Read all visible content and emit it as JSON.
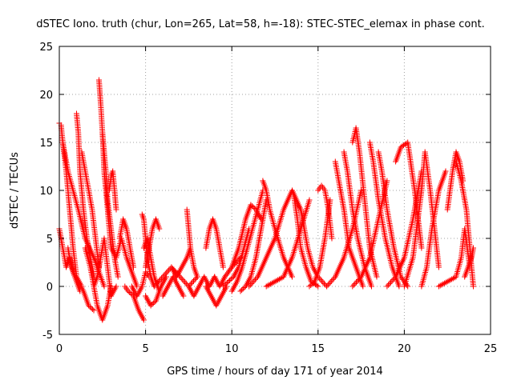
{
  "chart_data": {
    "type": "scatter",
    "title": "dSTEC Iono. truth (chur, Lon=265, Lat=58, h=-18): STEC-STEC_elemax in phase cont.",
    "xlabel": "GPS time / hours of day 171 of year 2014",
    "ylabel": "dSTEC  / TECUs",
    "xlim": [
      0,
      25
    ],
    "ylim": [
      -5,
      25
    ],
    "xticks": [
      0,
      5,
      10,
      15,
      20,
      25
    ],
    "yticks": [
      -5,
      0,
      5,
      10,
      15,
      20,
      25
    ],
    "xtick_labels": [
      "0",
      "5",
      "10",
      "15",
      "20",
      "25"
    ],
    "ytick_labels": [
      "-5",
      "0",
      "5",
      "10",
      "15",
      "20",
      "25"
    ],
    "grid": true,
    "marker": "plus",
    "color": "#ff0000",
    "arcs": [
      {
        "x": [
          0.0,
          0.1,
          0.2,
          0.4,
          0.6,
          0.8,
          1.0,
          1.3
        ],
        "y": [
          17.0,
          16.8,
          15.0,
          12.0,
          8.0,
          4.0,
          1.0,
          0.0
        ]
      },
      {
        "x": [
          0.0,
          0.2,
          0.4,
          0.6,
          0.9,
          1.2
        ],
        "y": [
          6.0,
          4.0,
          2.0,
          3.0,
          1.0,
          -0.5
        ]
      },
      {
        "x": [
          0.2,
          0.5,
          0.8,
          1.1,
          1.5,
          2.0,
          2.6
        ],
        "y": [
          15.0,
          12.0,
          10.0,
          8.0,
          5.0,
          3.0,
          0.0
        ]
      },
      {
        "x": [
          0.5,
          0.7,
          0.9,
          1.1,
          1.4,
          1.7,
          2.0
        ],
        "y": [
          4.0,
          2.0,
          1.0,
          0.5,
          -0.5,
          -2.0,
          -2.5
        ]
      },
      {
        "x": [
          1.0,
          1.1,
          1.2,
          1.4,
          1.6,
          1.8,
          2.0
        ],
        "y": [
          18.0,
          16.0,
          12.0,
          8.0,
          5.0,
          3.0,
          1.0
        ]
      },
      {
        "x": [
          1.3,
          1.5,
          1.7,
          1.9,
          2.1,
          2.3
        ],
        "y": [
          14.0,
          12.0,
          10.0,
          8.0,
          5.0,
          2.0
        ]
      },
      {
        "x": [
          1.5,
          1.8,
          2.0,
          2.2,
          2.5,
          2.8,
          3.0
        ],
        "y": [
          4.0,
          2.0,
          0.0,
          -2.0,
          -3.5,
          -2.0,
          0.0
        ]
      },
      {
        "x": [
          2.0,
          2.2,
          2.4,
          2.6,
          2.8,
          3.0,
          3.3
        ],
        "y": [
          0.0,
          1.0,
          3.0,
          5.0,
          2.0,
          -1.0,
          0.0
        ]
      },
      {
        "x": [
          2.3,
          2.4,
          2.5,
          2.6,
          2.8,
          3.0
        ],
        "y": [
          21.5,
          19.0,
          16.0,
          12.0,
          8.0,
          4.0
        ]
      },
      {
        "x": [
          2.5,
          2.6,
          2.7,
          2.8,
          3.0,
          3.2,
          3.4
        ],
        "y": [
          16.0,
          14.0,
          12.0,
          9.0,
          6.0,
          3.0,
          1.0
        ]
      },
      {
        "x": [
          2.9,
          3.0,
          3.1,
          3.2,
          3.3
        ],
        "y": [
          10.0,
          11.5,
          12.0,
          10.0,
          8.0
        ]
      },
      {
        "x": [
          3.0,
          3.3,
          3.6,
          3.9,
          4.2,
          4.5
        ],
        "y": [
          4.0,
          3.0,
          5.0,
          3.0,
          1.5,
          0.0
        ]
      },
      {
        "x": [
          3.5,
          3.7,
          3.9,
          4.1,
          4.3
        ],
        "y": [
          5.0,
          7.0,
          6.0,
          4.0,
          2.0
        ]
      },
      {
        "x": [
          3.8,
          4.0,
          4.3,
          4.6,
          4.9
        ],
        "y": [
          0.0,
          -0.5,
          -1.0,
          -2.5,
          -3.5
        ]
      },
      {
        "x": [
          4.2,
          4.5,
          4.8,
          5.0,
          5.2
        ],
        "y": [
          0.0,
          -1.0,
          0.0,
          1.5,
          1.0
        ]
      },
      {
        "x": [
          4.8,
          4.9,
          5.0,
          5.1,
          5.3,
          5.5
        ],
        "y": [
          7.5,
          7.0,
          5.0,
          3.0,
          1.0,
          0.0
        ]
      },
      {
        "x": [
          4.9,
          5.1,
          5.3,
          5.5,
          5.8
        ],
        "y": [
          4.0,
          5.0,
          3.0,
          1.0,
          -0.5
        ]
      },
      {
        "x": [
          5.0,
          5.3,
          5.6,
          5.9,
          6.2
        ],
        "y": [
          -1.0,
          -2.0,
          -1.5,
          0.0,
          1.0
        ]
      },
      {
        "x": [
          5.0,
          5.2,
          5.4,
          5.6,
          5.8
        ],
        "y": [
          2.0,
          4.0,
          6.0,
          7.0,
          6.0
        ]
      },
      {
        "x": [
          5.5,
          6.0,
          6.5,
          7.0,
          7.5,
          8.0
        ],
        "y": [
          0.0,
          1.0,
          2.0,
          1.0,
          0.0,
          1.0
        ]
      },
      {
        "x": [
          6.0,
          6.3,
          6.6,
          6.9,
          7.2
        ],
        "y": [
          -1.0,
          0.0,
          1.0,
          0.0,
          -1.0
        ]
      },
      {
        "x": [
          6.5,
          6.8,
          7.1,
          7.4,
          7.6
        ],
        "y": [
          2.0,
          1.0,
          2.0,
          3.0,
          4.0
        ]
      },
      {
        "x": [
          7.4,
          7.5,
          7.6,
          7.8,
          8.0
        ],
        "y": [
          8.0,
          6.0,
          4.0,
          2.0,
          1.0
        ]
      },
      {
        "x": [
          7.5,
          7.8,
          8.1,
          8.4,
          8.7,
          9.0
        ],
        "y": [
          0.0,
          -1.0,
          0.0,
          1.0,
          0.0,
          1.0
        ]
      },
      {
        "x": [
          8.5,
          8.7,
          8.9,
          9.1,
          9.3,
          9.5
        ],
        "y": [
          4.0,
          6.0,
          7.0,
          6.0,
          4.0,
          2.0
        ]
      },
      {
        "x": [
          8.5,
          8.8,
          9.1,
          9.4,
          9.7
        ],
        "y": [
          0.0,
          -1.0,
          -2.0,
          -1.0,
          0.0
        ]
      },
      {
        "x": [
          9.0,
          9.3,
          9.6,
          10.0,
          10.5
        ],
        "y": [
          1.0,
          0.0,
          1.0,
          2.0,
          3.0
        ]
      },
      {
        "x": [
          9.5,
          9.8,
          10.1,
          10.4,
          10.7,
          11.0
        ],
        "y": [
          0.0,
          0.5,
          1.0,
          2.0,
          4.0,
          6.0
        ]
      },
      {
        "x": [
          10.0,
          10.3,
          10.6,
          10.9,
          11.2,
          11.5,
          11.8
        ],
        "y": [
          -0.5,
          0.5,
          2.0,
          4.0,
          6.0,
          8.0,
          10.0
        ]
      },
      {
        "x": [
          10.5,
          10.8,
          11.1,
          11.4,
          11.7,
          12.0
        ],
        "y": [
          -0.5,
          0.0,
          1.0,
          3.0,
          6.0,
          9.0
        ]
      },
      {
        "x": [
          10.0,
          10.4,
          10.8,
          11.1,
          11.4,
          11.7
        ],
        "y": [
          2.0,
          4.0,
          7.0,
          8.5,
          8.0,
          7.0
        ]
      },
      {
        "x": [
          11.0,
          11.5,
          12.0,
          12.5,
          13.0,
          13.5,
          14.0
        ],
        "y": [
          0.0,
          1.0,
          3.0,
          5.0,
          8.0,
          10.0,
          8.0
        ]
      },
      {
        "x": [
          11.8,
          12.0,
          12.2,
          12.5,
          13.0,
          13.5
        ],
        "y": [
          11.0,
          10.0,
          8.0,
          6.0,
          3.0,
          1.0
        ]
      },
      {
        "x": [
          12.0,
          12.5,
          13.0,
          13.5,
          14.0,
          14.5
        ],
        "y": [
          0.0,
          0.5,
          1.0,
          3.0,
          6.0,
          9.0
        ]
      },
      {
        "x": [
          13.5,
          13.6,
          13.8,
          14.0,
          14.3,
          14.6,
          15.0
        ],
        "y": [
          10.0,
          9.5,
          7.0,
          4.0,
          2.0,
          0.5,
          0.0
        ]
      },
      {
        "x": [
          14.0,
          14.1,
          14.2,
          14.4,
          14.7,
          15.0,
          15.5
        ],
        "y": [
          8.0,
          7.0,
          6.0,
          4.0,
          2.0,
          1.0,
          0.0
        ]
      },
      {
        "x": [
          14.5,
          14.8,
          15.1,
          15.4,
          15.7
        ],
        "y": [
          0.0,
          0.5,
          2.0,
          5.0,
          9.0
        ]
      },
      {
        "x": [
          15.0,
          15.2,
          15.4,
          15.6,
          15.8
        ],
        "y": [
          10.0,
          10.5,
          10.0,
          8.0,
          5.0
        ]
      },
      {
        "x": [
          15.5,
          16.0,
          16.5,
          17.0,
          17.5
        ],
        "y": [
          0.0,
          1.0,
          3.0,
          6.0,
          10.0
        ]
      },
      {
        "x": [
          16.0,
          16.2,
          16.5,
          16.8,
          17.2,
          17.6
        ],
        "y": [
          13.0,
          11.0,
          8.0,
          4.0,
          2.0,
          0.0
        ]
      },
      {
        "x": [
          16.5,
          16.7,
          17.0,
          17.3,
          17.7,
          18.1
        ],
        "y": [
          14.0,
          12.0,
          8.0,
          5.0,
          2.0,
          0.0
        ]
      },
      {
        "x": [
          17.0,
          17.2,
          17.4,
          17.7,
          18.0,
          18.4
        ],
        "y": [
          15.0,
          16.5,
          14.0,
          9.0,
          4.0,
          1.0
        ]
      },
      {
        "x": [
          17.0,
          17.5,
          18.0,
          18.5,
          19.0
        ],
        "y": [
          0.0,
          1.0,
          3.0,
          7.0,
          11.0
        ]
      },
      {
        "x": [
          18.0,
          18.2,
          18.5,
          18.9,
          19.3,
          19.7
        ],
        "y": [
          15.0,
          13.0,
          9.0,
          5.0,
          2.0,
          0.0
        ]
      },
      {
        "x": [
          18.5,
          18.7,
          19.0,
          19.4,
          19.8,
          20.2
        ],
        "y": [
          14.0,
          12.0,
          8.0,
          4.0,
          1.0,
          0.0
        ]
      },
      {
        "x": [
          19.0,
          19.5,
          20.0,
          20.5,
          21.0
        ],
        "y": [
          0.0,
          1.0,
          3.0,
          7.0,
          12.0
        ]
      },
      {
        "x": [
          19.5,
          19.8,
          20.2,
          20.6,
          21.0
        ],
        "y": [
          13.0,
          14.5,
          15.0,
          10.0,
          4.0
        ]
      },
      {
        "x": [
          20.0,
          20.5,
          21.0,
          21.2,
          21.5,
          22.0
        ],
        "y": [
          0.0,
          3.0,
          10.0,
          14.0,
          10.0,
          2.0
        ]
      },
      {
        "x": [
          21.0,
          21.3,
          21.6,
          22.0,
          22.4
        ],
        "y": [
          0.0,
          2.0,
          6.0,
          10.0,
          12.0
        ]
      },
      {
        "x": [
          22.0,
          22.5,
          23.0,
          23.3,
          23.5,
          23.8
        ],
        "y": [
          0.0,
          0.5,
          1.0,
          3.0,
          6.0,
          2.0
        ]
      },
      {
        "x": [
          22.5,
          22.8,
          23.0,
          23.2,
          23.4
        ],
        "y": [
          8.0,
          12.0,
          14.0,
          13.0,
          11.0
        ]
      },
      {
        "x": [
          23.0,
          23.3,
          23.6,
          23.8,
          24.0
        ],
        "y": [
          13.0,
          11.0,
          8.0,
          4.0,
          0.0
        ]
      },
      {
        "x": [
          23.5,
          23.7,
          23.9,
          24.0
        ],
        "y": [
          1.0,
          2.0,
          3.0,
          4.0
        ]
      }
    ]
  }
}
